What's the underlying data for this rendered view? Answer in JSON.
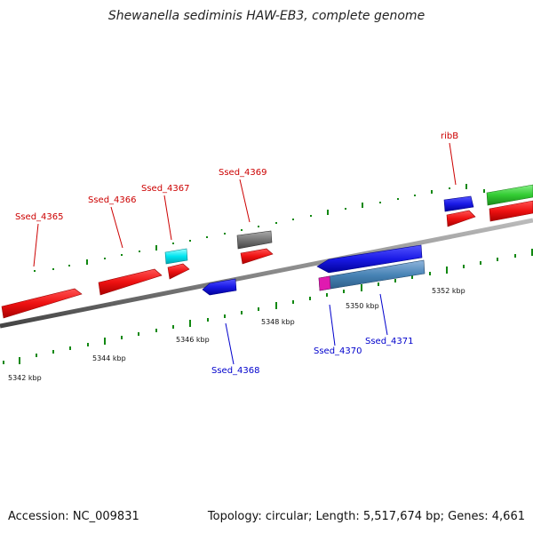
{
  "title": "Shewanella sediminis HAW-EB3, complete genome",
  "footer": {
    "accession": "Accession: NC_009831",
    "summary": "Topology: circular; Length: 5,517,674 bp; Genes: 4,661"
  },
  "colors": {
    "forward_label": "#cc0000",
    "reverse_label": "#0000cc",
    "red": "#ee1111",
    "blue": "#1a1ae6",
    "cyan": "#00e5f0",
    "gray": "#777777",
    "green": "#33cc33",
    "steelblue": "#4682b4",
    "magenta": "#e01ab0",
    "ticks": "#118811"
  },
  "scale_labels": [
    "5342 kbp",
    "5344 kbp",
    "5346 kbp",
    "5348 kbp",
    "5350 kbp",
    "5352 kbp"
  ],
  "gene_labels": [
    "Ssed_4365",
    "Ssed_4366",
    "Ssed_4367",
    "Ssed_4369",
    "ribB",
    "Ssed_4368",
    "Ssed_4370",
    "Ssed_4371"
  ]
}
